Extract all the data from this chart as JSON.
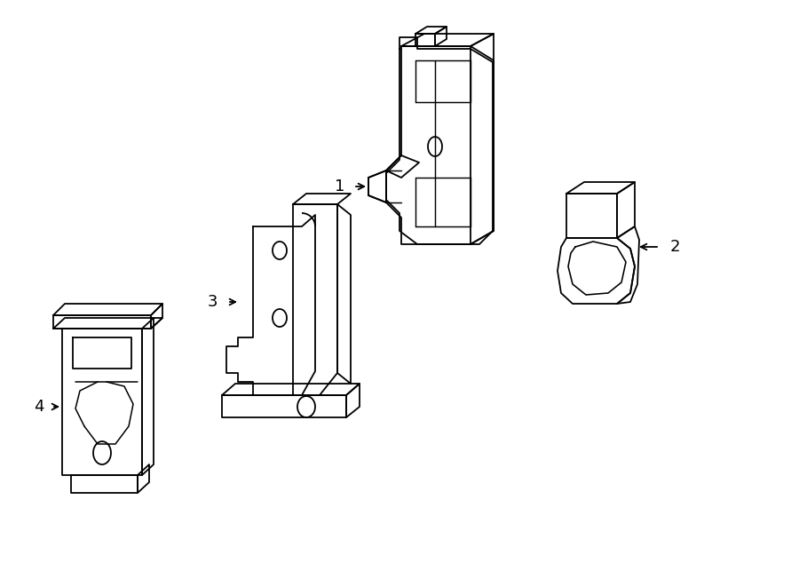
{
  "background_color": "#ffffff",
  "fig_width": 9.0,
  "fig_height": 6.61,
  "dpi": 100,
  "line_color": "#000000",
  "line_width": 1.3,
  "label_fontsize": 13
}
